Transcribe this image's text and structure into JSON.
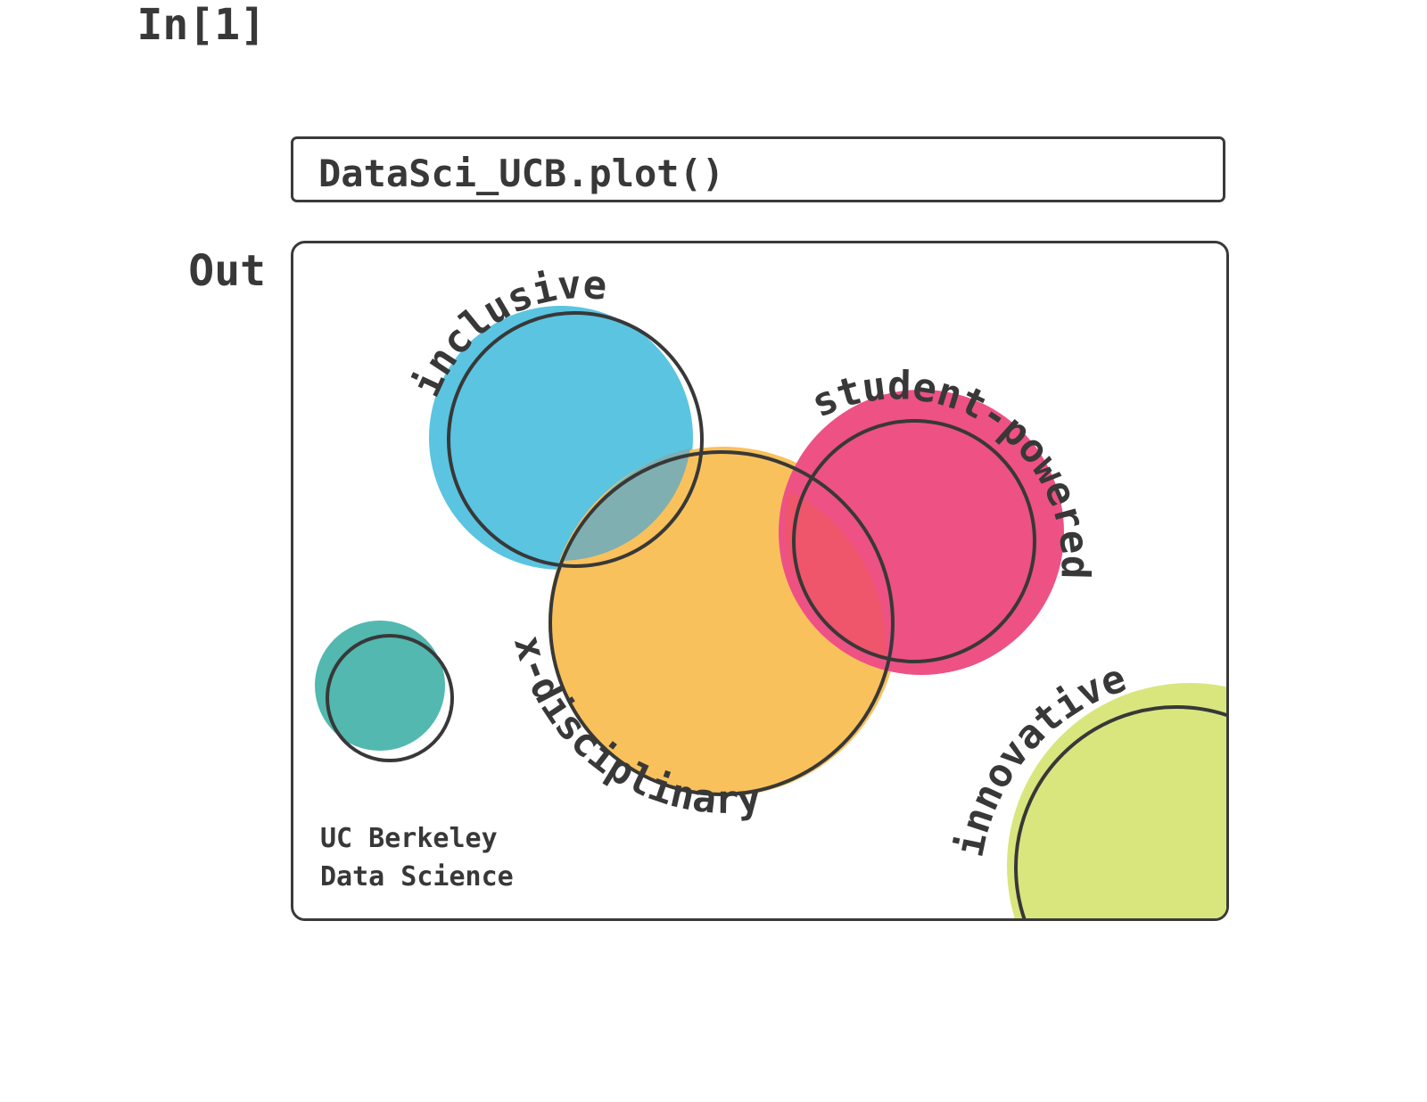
{
  "notebook": {
    "input_prompt": "In[1]",
    "input_code": "DataSci_UCB.plot()",
    "output_prompt": "Out"
  },
  "plot": {
    "labels": {
      "inclusive": "inclusive",
      "student_powered": "student-powered",
      "x_disciplinary": "x-disciplinary",
      "innovative": "innovative"
    },
    "credit_line1": "UC Berkeley",
    "credit_line2": "Data Science",
    "colors": {
      "blue": "#5BC4E1",
      "pink": "#EE5184",
      "yellow": "#F9C15C",
      "teal": "#52B8B0",
      "green": "#D9E67E",
      "outline": "#383838"
    }
  }
}
